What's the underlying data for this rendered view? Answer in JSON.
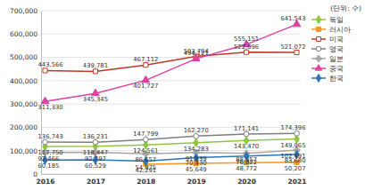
{
  "chart_data": {
    "type": "line",
    "subtitle": "(단위: 수)",
    "categories": [
      "2016",
      "2017",
      "2018",
      "2019",
      "2020",
      "2021"
    ],
    "ylim": [
      0,
      700000
    ],
    "yticks": [
      0,
      {
        "value": 100000,
        "label": "100,000"
      },
      {
        "value": 200000,
        "label": "200,000"
      },
      {
        "value": 300000,
        "label": "300,000"
      },
      {
        "value": 400000,
        "label": "400,000"
      },
      {
        "value": 500000,
        "label": "500,000"
      },
      {
        "value": 600000,
        "label": "600,000"
      },
      {
        "value": 700000,
        "label": "700,000"
      }
    ],
    "grid": true,
    "legend": "upper right",
    "data_labels": true,
    "series": [
      {
        "name": "독일",
        "color": "#8dc63f",
        "marker": "diamond",
        "values": [
          117750,
          118447,
          124561,
          134283,
          143470,
          149965
        ],
        "value_labels": [
          "117,750",
          "118,447",
          "124,561",
          "134,283",
          "143,470",
          "149,965"
        ]
      },
      {
        "name": "러시아",
        "color": "#f7941d",
        "marker": "square",
        "values": [
          null,
          null,
          42291,
          45649,
          48772,
          50207
        ],
        "value_labels": [
          null,
          null,
          "42,291",
          "45,649",
          "48,772",
          "50,207"
        ]
      },
      {
        "name": "미국",
        "color": "#c0392b",
        "marker": "square-open",
        "values": [
          443566,
          439781,
          467112,
          503704,
          522096,
          521072
        ],
        "value_labels": [
          "443,566",
          "439,781",
          "467,112",
          "503,704",
          "522,096",
          "521,072"
        ]
      },
      {
        "name": "영국",
        "color": "#7f7f7f",
        "marker": "circle-open",
        "values": [
          136743,
          136231,
          147799,
          162270,
          171141,
          174396
        ],
        "value_labels": [
          "136,743",
          "136,231",
          "147,799",
          "162,270",
          "171,141",
          "174,396"
        ]
      },
      {
        "name": "일본",
        "color": "#a6a6a6",
        "marker": "cross",
        "values": [
          92466,
          92797,
          86657,
          91839,
          88357,
          102491
        ],
        "value_labels": [
          "92,466",
          "92,797",
          "86,657",
          "91,839",
          "88,357",
          "102,491"
        ]
      },
      {
        "name": "중국",
        "color": "#e040a0",
        "marker": "triangle",
        "values": [
          311330,
          345345,
          401727,
          494121,
          555151,
          641543
        ],
        "value_labels": [
          "311,330",
          "345,345",
          "401,727",
          "494,121",
          "555,151",
          "641,543"
        ]
      },
      {
        "name": "한국",
        "color": "#2e75b6",
        "marker": "diamond",
        "values": [
          60185,
          60529,
          54975,
          70430,
          76822,
          83680
        ],
        "value_labels": [
          "60,185",
          "60,529",
          "54,975",
          "70,430",
          "76,822",
          "83,680"
        ]
      }
    ]
  }
}
